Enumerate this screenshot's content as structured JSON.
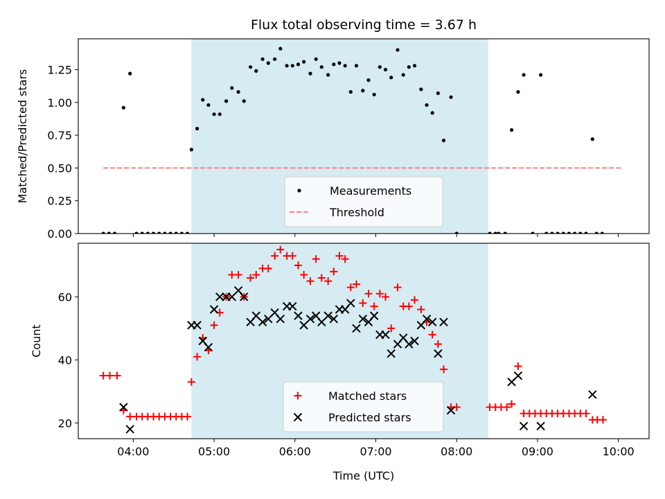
{
  "chart_data": [
    {
      "type": "scatter",
      "title": "Flux total observing time = 3.67 h",
      "ylabel": "Matched/Predicted stars",
      "xlabel": "",
      "xlim": [
        3.32,
        10.38
      ],
      "ylim": [
        0,
        1.485
      ],
      "xticks": [
        4,
        5,
        6,
        7,
        8,
        9,
        10
      ],
      "yticks": [
        0.0,
        0.25,
        0.5,
        0.75,
        1.0,
        1.25
      ],
      "ytick_labels": [
        "0.00",
        "0.25",
        "0.50",
        "0.75",
        "1.00",
        "1.25"
      ],
      "shaded_interval": [
        4.72,
        8.39
      ],
      "legend_position": "lower-center",
      "series": [
        {
          "name": "Measurements",
          "marker": "dot",
          "color": "#000000",
          "points": [
            [
              3.63,
              0
            ],
            [
              3.7,
              0
            ],
            [
              3.77,
              0
            ],
            [
              3.88,
              0.96
            ],
            [
              3.96,
              1.22
            ],
            [
              4.04,
              0
            ],
            [
              4.11,
              0
            ],
            [
              4.18,
              0
            ],
            [
              4.25,
              0
            ],
            [
              4.32,
              0
            ],
            [
              4.39,
              0
            ],
            [
              4.46,
              0
            ],
            [
              4.53,
              0
            ],
            [
              4.6,
              0
            ],
            [
              4.67,
              0
            ],
            [
              4.72,
              0.64
            ],
            [
              4.79,
              0.8
            ],
            [
              4.86,
              1.02
            ],
            [
              4.93,
              0.98
            ],
            [
              5.0,
              0.91
            ],
            [
              5.07,
              0.91
            ],
            [
              5.15,
              1.01
            ],
            [
              5.22,
              1.11
            ],
            [
              5.3,
              1.08
            ],
            [
              5.37,
              1.01
            ],
            [
              5.45,
              1.27
            ],
            [
              5.52,
              1.24
            ],
            [
              5.6,
              1.33
            ],
            [
              5.67,
              1.3
            ],
            [
              5.75,
              1.33
            ],
            [
              5.82,
              1.41
            ],
            [
              5.9,
              1.28
            ],
            [
              5.97,
              1.28
            ],
            [
              6.04,
              1.29
            ],
            [
              6.11,
              1.31
            ],
            [
              6.19,
              1.22
            ],
            [
              6.26,
              1.33
            ],
            [
              6.33,
              1.27
            ],
            [
              6.41,
              1.21
            ],
            [
              6.48,
              1.29
            ],
            [
              6.55,
              1.3
            ],
            [
              6.62,
              1.28
            ],
            [
              6.69,
              1.08
            ],
            [
              6.76,
              1.28
            ],
            [
              6.84,
              1.09
            ],
            [
              6.91,
              1.17
            ],
            [
              6.98,
              1.06
            ],
            [
              7.05,
              1.27
            ],
            [
              7.12,
              1.25
            ],
            [
              7.19,
              1.19
            ],
            [
              7.27,
              1.4
            ],
            [
              7.34,
              1.21
            ],
            [
              7.41,
              1.27
            ],
            [
              7.48,
              1.28
            ],
            [
              7.56,
              1.1
            ],
            [
              7.63,
              0.98
            ],
            [
              7.7,
              0.92
            ],
            [
              7.77,
              1.07
            ],
            [
              7.84,
              0.71
            ],
            [
              7.93,
              1.04
            ],
            [
              8.0,
              0
            ],
            [
              8.41,
              0
            ],
            [
              8.48,
              0
            ],
            [
              8.52,
              0
            ],
            [
              8.6,
              0
            ],
            [
              8.68,
              0.79
            ],
            [
              8.76,
              1.08
            ],
            [
              8.83,
              1.21
            ],
            [
              8.94,
              0
            ],
            [
              9.04,
              1.21
            ],
            [
              9.11,
              0
            ],
            [
              9.18,
              0
            ],
            [
              9.25,
              0
            ],
            [
              9.32,
              0
            ],
            [
              9.39,
              0
            ],
            [
              9.46,
              0
            ],
            [
              9.53,
              0
            ],
            [
              9.6,
              0
            ],
            [
              9.68,
              0.72
            ],
            [
              9.73,
              0
            ],
            [
              9.8,
              0
            ]
          ]
        },
        {
          "name": "Threshold",
          "marker": "dashed-line",
          "color": "#ff7f7f",
          "points": [
            [
              3.63,
              0.5
            ],
            [
              10.05,
              0.5
            ]
          ]
        }
      ]
    },
    {
      "type": "scatter",
      "title": "",
      "ylabel": "Count",
      "xlabel": "Time (UTC)",
      "xlim": [
        3.32,
        10.38
      ],
      "ylim": [
        15,
        77
      ],
      "xticks": [
        4,
        5,
        6,
        7,
        8,
        9,
        10
      ],
      "xtick_labels": [
        "04:00",
        "05:00",
        "06:00",
        "07:00",
        "08:00",
        "09:00",
        "10:00"
      ],
      "yticks": [
        20,
        40,
        60
      ],
      "ytick_labels": [
        "20",
        "40",
        "60"
      ],
      "shaded_interval": [
        4.72,
        8.39
      ],
      "legend_position": "lower-center",
      "series": [
        {
          "name": "Matched stars",
          "marker": "plus",
          "color": "#ff0000",
          "points": [
            [
              3.63,
              35
            ],
            [
              3.71,
              35
            ],
            [
              3.8,
              35
            ],
            [
              3.88,
              24
            ],
            [
              3.96,
              22
            ],
            [
              4.04,
              22
            ],
            [
              4.11,
              22
            ],
            [
              4.18,
              22
            ],
            [
              4.25,
              22
            ],
            [
              4.32,
              22
            ],
            [
              4.39,
              22
            ],
            [
              4.46,
              22
            ],
            [
              4.53,
              22
            ],
            [
              4.6,
              22
            ],
            [
              4.67,
              22
            ],
            [
              4.72,
              33
            ],
            [
              4.79,
              41
            ],
            [
              4.86,
              47
            ],
            [
              4.93,
              43
            ],
            [
              5.0,
              51
            ],
            [
              5.07,
              55
            ],
            [
              5.15,
              60
            ],
            [
              5.22,
              67
            ],
            [
              5.3,
              67
            ],
            [
              5.37,
              60
            ],
            [
              5.45,
              66
            ],
            [
              5.52,
              67
            ],
            [
              5.6,
              69
            ],
            [
              5.67,
              69
            ],
            [
              5.75,
              73
            ],
            [
              5.82,
              75
            ],
            [
              5.9,
              73
            ],
            [
              5.97,
              73
            ],
            [
              6.04,
              70
            ],
            [
              6.11,
              67
            ],
            [
              6.19,
              65
            ],
            [
              6.26,
              72
            ],
            [
              6.33,
              66
            ],
            [
              6.41,
              65
            ],
            [
              6.48,
              68
            ],
            [
              6.55,
              73
            ],
            [
              6.62,
              72
            ],
            [
              6.69,
              63
            ],
            [
              6.76,
              64
            ],
            [
              6.84,
              58
            ],
            [
              6.91,
              61
            ],
            [
              6.98,
              57
            ],
            [
              7.05,
              61
            ],
            [
              7.12,
              60
            ],
            [
              7.19,
              50
            ],
            [
              7.27,
              63
            ],
            [
              7.34,
              57
            ],
            [
              7.41,
              57
            ],
            [
              7.48,
              59
            ],
            [
              7.56,
              56
            ],
            [
              7.63,
              52
            ],
            [
              7.7,
              48
            ],
            [
              7.77,
              45
            ],
            [
              7.84,
              37
            ],
            [
              7.93,
              25
            ],
            [
              8.0,
              25
            ],
            [
              8.41,
              25
            ],
            [
              8.48,
              25
            ],
            [
              8.55,
              25
            ],
            [
              8.62,
              25
            ],
            [
              8.68,
              26
            ],
            [
              8.76,
              38
            ],
            [
              8.83,
              23
            ],
            [
              8.9,
              23
            ],
            [
              8.97,
              23
            ],
            [
              9.04,
              23
            ],
            [
              9.11,
              23
            ],
            [
              9.18,
              23
            ],
            [
              9.25,
              23
            ],
            [
              9.32,
              23
            ],
            [
              9.39,
              23
            ],
            [
              9.46,
              23
            ],
            [
              9.53,
              23
            ],
            [
              9.6,
              23
            ],
            [
              9.68,
              21
            ],
            [
              9.74,
              21
            ],
            [
              9.81,
              21
            ]
          ]
        },
        {
          "name": "Predicted stars",
          "marker": "cross",
          "color": "#000000",
          "points": [
            [
              3.88,
              25
            ],
            [
              3.96,
              18
            ],
            [
              4.72,
              51
            ],
            [
              4.79,
              51
            ],
            [
              4.86,
              46
            ],
            [
              4.93,
              44
            ],
            [
              5.0,
              56
            ],
            [
              5.07,
              60
            ],
            [
              5.15,
              60
            ],
            [
              5.22,
              60
            ],
            [
              5.3,
              62
            ],
            [
              5.37,
              60
            ],
            [
              5.45,
              52
            ],
            [
              5.52,
              54
            ],
            [
              5.6,
              52
            ],
            [
              5.67,
              53
            ],
            [
              5.75,
              55
            ],
            [
              5.82,
              53
            ],
            [
              5.9,
              57
            ],
            [
              5.97,
              57
            ],
            [
              6.04,
              54
            ],
            [
              6.11,
              51
            ],
            [
              6.19,
              53
            ],
            [
              6.26,
              54
            ],
            [
              6.33,
              52
            ],
            [
              6.41,
              54
            ],
            [
              6.48,
              53
            ],
            [
              6.55,
              56
            ],
            [
              6.62,
              56
            ],
            [
              6.69,
              58
            ],
            [
              6.76,
              50
            ],
            [
              6.84,
              53
            ],
            [
              6.91,
              52
            ],
            [
              6.98,
              54
            ],
            [
              7.05,
              48
            ],
            [
              7.12,
              48
            ],
            [
              7.19,
              42
            ],
            [
              7.27,
              45
            ],
            [
              7.34,
              47
            ],
            [
              7.41,
              45
            ],
            [
              7.48,
              46
            ],
            [
              7.56,
              51
            ],
            [
              7.63,
              53
            ],
            [
              7.7,
              52
            ],
            [
              7.77,
              42
            ],
            [
              7.84,
              52
            ],
            [
              7.93,
              24
            ],
            [
              8.68,
              33
            ],
            [
              8.76,
              35
            ],
            [
              8.83,
              19
            ],
            [
              9.04,
              19
            ],
            [
              9.68,
              29
            ]
          ]
        }
      ]
    }
  ]
}
